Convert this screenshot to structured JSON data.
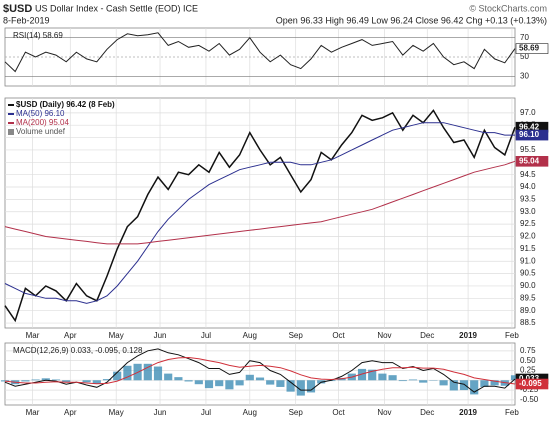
{
  "header": {
    "symbol": "$USD",
    "title": "US Dollar Index - Cash Settle (EOD) ICE",
    "watermark": "© StockCharts.com",
    "date": "8-Feb-2019",
    "quote": "Open 96.33  High 96.49  Low 96.24  Close 96.42  Chg +0.13 (+0.13%)"
  },
  "chart_data": [
    {
      "type": "line",
      "title": "RSI(14) 58.69",
      "xlim": [
        0,
        50
      ],
      "xticks": [
        2.7,
        6.4,
        10.9,
        15.2,
        19.7,
        24,
        28.5,
        32.7,
        37.2,
        41.4,
        45.4,
        49.7
      ],
      "ylim": [
        20,
        80
      ],
      "yticks": [
        70,
        50,
        30
      ],
      "grid": true,
      "series": [
        {
          "color": "#222222",
          "last_label": "58.69",
          "values": [
            45,
            35,
            55,
            50,
            55,
            52,
            45,
            55,
            48,
            45,
            58,
            68,
            74,
            72,
            73,
            75,
            62,
            66,
            60,
            62,
            56,
            64,
            52,
            58,
            70,
            55,
            45,
            52,
            42,
            38,
            48,
            62,
            55,
            60,
            64,
            68,
            62,
            64,
            66,
            52,
            62,
            56,
            64,
            50,
            42,
            45,
            38,
            58,
            48,
            44,
            58.69
          ]
        }
      ]
    },
    {
      "type": "line",
      "xlim": [
        0,
        50
      ],
      "xticks": [
        {
          "value": 2.7,
          "label": "Mar"
        },
        {
          "value": 6.4,
          "label": "Apr"
        },
        {
          "value": 10.9,
          "label": "May"
        },
        {
          "value": 15.2,
          "label": "Jun"
        },
        {
          "value": 19.7,
          "label": "Jul"
        },
        {
          "value": 24,
          "label": "Aug"
        },
        {
          "value": 28.5,
          "label": "Sep"
        },
        {
          "value": 32.7,
          "label": "Oct"
        },
        {
          "value": 37.2,
          "label": "Nov"
        },
        {
          "value": 41.4,
          "label": "Dec"
        },
        {
          "value": 45.4,
          "label": "2019"
        },
        {
          "value": 49.7,
          "label": "Feb"
        }
      ],
      "ylim": [
        88.3,
        97.6
      ],
      "yticks": [
        {
          "value": 97,
          "label": "97.0"
        },
        {
          "value": 96.5,
          "label": "96.5"
        },
        {
          "value": 96,
          "label": "96.0"
        },
        {
          "value": 95.5,
          "label": "95.5"
        },
        {
          "value": 95,
          "label": "95.0"
        },
        {
          "value": 94.5,
          "label": "94.5"
        },
        {
          "value": 94,
          "label": "94.0"
        },
        {
          "value": 93.5,
          "label": "93.5"
        },
        {
          "value": 93,
          "label": "93.0"
        },
        {
          "value": 92.5,
          "label": "92.5"
        },
        {
          "value": 92,
          "label": "92.0"
        },
        {
          "value": 91.5,
          "label": "91.5"
        },
        {
          "value": 91,
          "label": "91.0"
        },
        {
          "value": 90.5,
          "label": "90.5"
        },
        {
          "value": 90,
          "label": "90.0"
        },
        {
          "value": 89.5,
          "label": "89.5"
        },
        {
          "value": 89,
          "label": "89.0"
        },
        {
          "value": 88.5,
          "label": "88.5"
        }
      ],
      "grid": true,
      "annotations": [
        "Volume undef"
      ],
      "series": [
        {
          "name": "$USD (Daily) 96.42 (8 Feb)",
          "color": "#111111",
          "last_label": "96.42",
          "values": [
            89.2,
            88.6,
            89.9,
            89.6,
            90.0,
            89.8,
            89.4,
            90.1,
            89.6,
            89.4,
            90.4,
            91.5,
            92.4,
            92.8,
            93.7,
            94.4,
            93.9,
            94.6,
            94.5,
            94.9,
            94.6,
            95.4,
            94.8,
            95.3,
            96.2,
            95.5,
            94.9,
            95.2,
            94.5,
            93.8,
            94.3,
            95.4,
            95.1,
            95.7,
            96.2,
            96.9,
            96.7,
            96.8,
            97.0,
            96.3,
            96.9,
            96.6,
            97.1,
            96.4,
            95.8,
            95.9,
            95.2,
            96.3,
            95.6,
            95.3,
            96.42
          ]
        },
        {
          "name": "MA(50) 96.10",
          "color": "#2b2f8f",
          "last_label": "96.10",
          "values": [
            90.1,
            89.9,
            89.7,
            89.6,
            89.5,
            89.5,
            89.4,
            89.4,
            89.3,
            89.4,
            89.6,
            90.0,
            90.5,
            91.0,
            91.6,
            92.2,
            92.7,
            93.1,
            93.5,
            93.8,
            94.1,
            94.3,
            94.5,
            94.7,
            94.8,
            94.9,
            95.0,
            95.0,
            95.0,
            94.9,
            94.9,
            95.0,
            95.1,
            95.3,
            95.5,
            95.7,
            95.9,
            96.1,
            96.3,
            96.4,
            96.5,
            96.6,
            96.6,
            96.6,
            96.5,
            96.4,
            96.3,
            96.2,
            96.2,
            96.1,
            96.1
          ]
        },
        {
          "name": "MA(200) 95.04",
          "color": "#b2304a",
          "last_label": "95.04",
          "values": [
            92.4,
            92.3,
            92.2,
            92.1,
            92.0,
            91.95,
            91.9,
            91.85,
            91.8,
            91.75,
            91.7,
            91.7,
            91.7,
            91.7,
            91.75,
            91.8,
            91.85,
            91.9,
            91.95,
            92.0,
            92.05,
            92.1,
            92.15,
            92.2,
            92.25,
            92.3,
            92.35,
            92.4,
            92.45,
            92.5,
            92.55,
            92.6,
            92.7,
            92.8,
            92.9,
            93.0,
            93.1,
            93.25,
            93.4,
            93.55,
            93.7,
            93.85,
            94.0,
            94.15,
            94.3,
            94.45,
            94.6,
            94.7,
            94.8,
            94.9,
            95.04
          ]
        }
      ]
    },
    {
      "type": "line",
      "title": "MACD(12,26,9) 0.033, -0.095, 0.128",
      "xlim": [
        0,
        50
      ],
      "xticks": [
        {
          "value": 2.7,
          "label": "Mar"
        },
        {
          "value": 6.4,
          "label": "Apr"
        },
        {
          "value": 10.9,
          "label": "May"
        },
        {
          "value": 15.2,
          "label": "Jun"
        },
        {
          "value": 19.7,
          "label": "Jul"
        },
        {
          "value": 24,
          "label": "Aug"
        },
        {
          "value": 28.5,
          "label": "Sep"
        },
        {
          "value": 32.7,
          "label": "Oct"
        },
        {
          "value": 37.2,
          "label": "Nov"
        },
        {
          "value": 41.4,
          "label": "Dec"
        },
        {
          "value": 45.4,
          "label": "2019"
        },
        {
          "value": 49.7,
          "label": "Feb"
        }
      ],
      "ylim": [
        -0.63,
        0.95
      ],
      "yticks": [
        {
          "value": 0.75,
          "label": "0.75"
        },
        {
          "value": 0.5,
          "label": "0.50"
        },
        {
          "value": 0.25,
          "label": "0.25"
        },
        {
          "value": 0,
          "label": "0.00"
        },
        {
          "value": -0.25,
          "label": "-0.25"
        },
        {
          "value": -0.5,
          "label": "-0.50"
        }
      ],
      "grid": true,
      "series": [
        {
          "type": "bar",
          "color": "#3f8db5",
          "values": [
            -0.03,
            -0.1,
            -0.03,
            0.02,
            0.05,
            0.02,
            -0.05,
            0.0,
            -0.05,
            -0.09,
            0.03,
            0.22,
            0.37,
            0.42,
            0.42,
            0.35,
            0.17,
            0.08,
            -0.03,
            -0.1,
            -0.2,
            -0.15,
            -0.23,
            -0.13,
            0.14,
            0.07,
            -0.11,
            -0.17,
            -0.29,
            -0.39,
            -0.31,
            -0.08,
            -0.02,
            0.06,
            0.17,
            0.29,
            0.27,
            0.17,
            0.13,
            -0.02,
            0.02,
            -0.06,
            -0.01,
            -0.13,
            -0.26,
            -0.25,
            -0.36,
            -0.17,
            -0.13,
            -0.14,
            0.128
          ]
        },
        {
          "color": "#111111",
          "last_label": "0.033",
          "values": [
            -0.05,
            -0.15,
            -0.1,
            -0.05,
            0.0,
            -0.02,
            -0.1,
            -0.05,
            -0.12,
            -0.18,
            -0.05,
            0.2,
            0.45,
            0.62,
            0.75,
            0.8,
            0.7,
            0.65,
            0.55,
            0.45,
            0.3,
            0.3,
            0.15,
            0.2,
            0.5,
            0.45,
            0.25,
            0.15,
            -0.05,
            -0.25,
            -0.25,
            -0.05,
            0.0,
            0.1,
            0.25,
            0.45,
            0.5,
            0.45,
            0.45,
            0.3,
            0.35,
            0.25,
            0.3,
            0.15,
            -0.05,
            -0.1,
            -0.3,
            -0.15,
            -0.15,
            -0.2,
            0.033
          ]
        },
        {
          "color": "#d0303a",
          "last_label": "-0.095",
          "values": [
            -0.02,
            -0.05,
            -0.07,
            -0.07,
            -0.05,
            -0.04,
            -0.05,
            -0.05,
            -0.07,
            -0.09,
            -0.08,
            -0.02,
            0.08,
            0.2,
            0.33,
            0.45,
            0.53,
            0.57,
            0.58,
            0.55,
            0.5,
            0.45,
            0.38,
            0.33,
            0.36,
            0.38,
            0.36,
            0.32,
            0.24,
            0.14,
            0.06,
            0.03,
            0.02,
            0.04,
            0.08,
            0.16,
            0.23,
            0.28,
            0.32,
            0.32,
            0.33,
            0.31,
            0.31,
            0.28,
            0.21,
            0.15,
            0.06,
            0.02,
            -0.02,
            -0.06,
            -0.095
          ]
        }
      ]
    }
  ]
}
